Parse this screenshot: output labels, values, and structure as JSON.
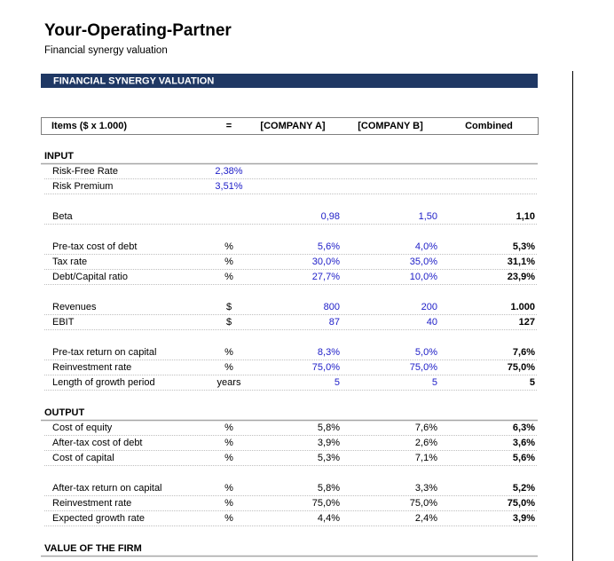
{
  "header": {
    "title": "Your-Operating-Partner",
    "subtitle": "Financial synergy valuation"
  },
  "banner": "FINANCIAL SYNERGY VALUATION",
  "columns": [
    "Items ($ x 1.000)",
    "=",
    "[COMPANY A]",
    "[COMPANY B]",
    "Combined"
  ],
  "sections": [
    {
      "title": "INPUT",
      "groups": [
        [
          {
            "label": "Risk-Free Rate",
            "unit": "2,38%"
          },
          {
            "label": "Risk Premium",
            "unit": "3,51%"
          }
        ],
        [
          {
            "label": "Beta",
            "a": "0,98",
            "b": "1,50",
            "combined": "1,10"
          }
        ],
        [
          {
            "label": "Pre-tax cost of debt",
            "unit": "%",
            "a": "5,6%",
            "b": "4,0%",
            "combined": "5,3%"
          },
          {
            "label": "Tax rate",
            "unit": "%",
            "a": "30,0%",
            "b": "35,0%",
            "combined": "31,1%"
          },
          {
            "label": "Debt/Capital ratio",
            "unit": "%",
            "a": "27,7%",
            "b": "10,0%",
            "combined": "23,9%"
          }
        ],
        [
          {
            "label": "Revenues",
            "unit": "$",
            "a": "800",
            "b": "200",
            "combined": "1.000"
          },
          {
            "label": "EBIT",
            "unit": "$",
            "a": "87",
            "b": "40",
            "combined": "127"
          }
        ],
        [
          {
            "label": "Pre-tax return on capital",
            "unit": "%",
            "a": "8,3%",
            "b": "5,0%",
            "combined": "7,6%"
          },
          {
            "label": "Reinvestment rate",
            "unit": "%",
            "a": "75,0%",
            "b": "75,0%",
            "combined": "75,0%"
          },
          {
            "label": "Length of growth period",
            "unit": "years",
            "a": "5",
            "b": "5",
            "combined": "5"
          }
        ]
      ]
    },
    {
      "title": "OUTPUT",
      "groups": [
        [
          {
            "label": "Cost of equity",
            "unit": "%",
            "a": "5,8%",
            "b": "7,6%",
            "combined": "6,3%"
          },
          {
            "label": "After-tax cost of debt",
            "unit": "%",
            "a": "3,9%",
            "b": "2,6%",
            "combined": "3,6%"
          },
          {
            "label": "Cost of capital",
            "unit": "%",
            "a": "5,3%",
            "b": "7,1%",
            "combined": "5,6%"
          }
        ],
        [
          {
            "label": "After-tax return on capital",
            "unit": "%",
            "a": "5,8%",
            "b": "3,3%",
            "combined": "5,2%"
          },
          {
            "label": "Reinvestment rate",
            "unit": "%",
            "a": "75,0%",
            "b": "75,0%",
            "combined": "75,0%"
          },
          {
            "label": "Expected growth rate",
            "unit": "%",
            "a": "4,4%",
            "b": "2,4%",
            "combined": "3,9%"
          }
        ]
      ]
    },
    {
      "title": "VALUE OF THE FIRM",
      "groups": []
    }
  ]
}
